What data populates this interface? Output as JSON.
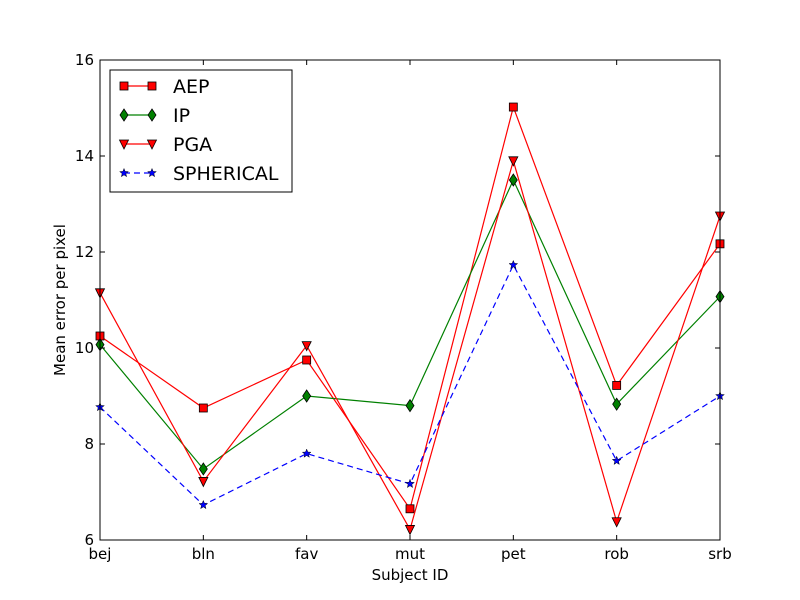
{
  "chart_data": {
    "type": "line",
    "title": "",
    "xlabel": "Subject ID",
    "ylabel": "Mean error per pixel",
    "categories": [
      "bej",
      "bln",
      "fav",
      "mut",
      "pet",
      "rob",
      "srb"
    ],
    "ylim": [
      6,
      16
    ],
    "yticks": [
      "6",
      "8",
      "10",
      "12",
      "14",
      "16"
    ],
    "grid": false,
    "legend_position": "top-left",
    "series": [
      {
        "name": "AEP",
        "color": "#ff0000",
        "marker": "square",
        "dash": "solid",
        "values": [
          10.25,
          8.75,
          9.75,
          6.65,
          15.02,
          9.22,
          12.17
        ]
      },
      {
        "name": "IP",
        "color": "#008000",
        "marker": "diamond",
        "dash": "solid",
        "values": [
          10.07,
          7.48,
          9.0,
          8.8,
          13.5,
          8.83,
          11.07
        ]
      },
      {
        "name": "PGA",
        "color": "#ff0000",
        "marker": "triangle-down",
        "dash": "solid",
        "values": [
          11.15,
          7.22,
          10.05,
          6.22,
          13.9,
          6.38,
          12.75
        ]
      },
      {
        "name": "SPHERICAL",
        "color": "#0000ff",
        "marker": "star",
        "dash": "dashed",
        "values": [
          8.77,
          6.73,
          7.8,
          7.17,
          11.73,
          7.65,
          9.0
        ]
      }
    ]
  }
}
